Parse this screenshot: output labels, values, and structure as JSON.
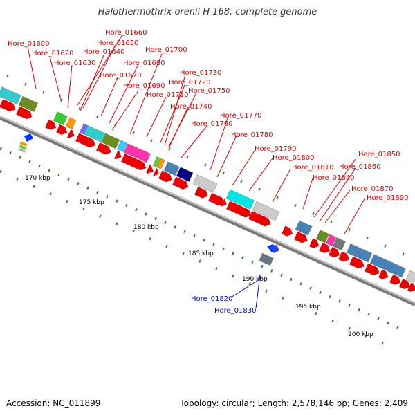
{
  "figure": {
    "title": "Halothermothrix orenii H 168, complete genome",
    "accession_text": "Accession: NC_011899",
    "topology_text": "Topology: circular; Length: 2,578,146 bp; Genes: 2,409"
  },
  "scale": {
    "ticks": [
      "170 kbp",
      "175 kbp",
      "180 kbp",
      "185 kbp",
      "190 kbp",
      "195 kbp",
      "200 kbp"
    ]
  },
  "genes_forward": [
    "Hore_01600",
    "Hore_01620",
    "Hore_01630",
    "Hore_01640",
    "Hore_01650",
    "Hore_01660",
    "Hore_01670",
    "Hore_01680",
    "Hore_01690",
    "Hore_01700",
    "Hore_01710",
    "Hore_01720",
    "Hore_01730",
    "Hore_01740",
    "Hore_01750",
    "Hore_01760",
    "Hore_01770",
    "Hore_01780",
    "Hore_01790",
    "Hore_01800",
    "Hore_01810",
    "Hore_01840",
    "Hore_01850",
    "Hore_01860",
    "Hore_01870",
    "Hore_01890"
  ],
  "genes_reverse": [
    "Hore_01820",
    "Hore_01830"
  ],
  "colors": {
    "forward_label": "#dd0000",
    "reverse_label": "#0000cc",
    "gene_arrow": "#ee0000",
    "tick": "#2a7a2a",
    "backbone": "#9a9a9a"
  }
}
